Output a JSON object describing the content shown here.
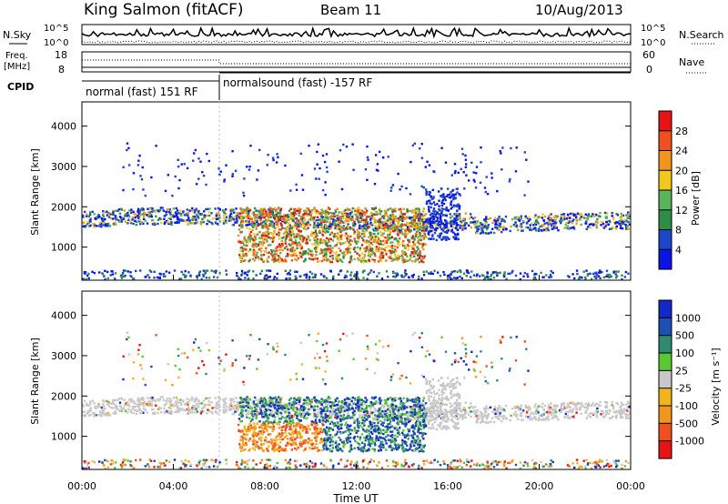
{
  "header": {
    "station": "King Salmon (fitACF)",
    "beam": "Beam 11",
    "date": "10/Aug/2013"
  },
  "top_panels": {
    "nsky_label": "N.Sky",
    "nsearch_label": "N.Search",
    "noise_ticks_left": [
      "10^5",
      "10^0"
    ],
    "noise_ticks_right": [
      "10^5",
      "10^0"
    ],
    "freq_label_1": "Freq.",
    "freq_label_2": "[MHz]",
    "freq_ticks": [
      "18",
      "8"
    ],
    "nave_label": "Nave",
    "nave_ticks": [
      "60",
      "0"
    ],
    "cpid_label": "CPID",
    "cpid_segments": [
      {
        "label": "normal (fast) 151 RF",
        "start_hour": 0,
        "end_hour": 6
      },
      {
        "label": "normalsound (fast) -157 RF",
        "start_hour": 6,
        "end_hour": 24
      }
    ]
  },
  "colors": {
    "power_scale": [
      "#0a14e6",
      "#1e46c8",
      "#2d8c46",
      "#5ab45a",
      "#f0c81e",
      "#f0961e",
      "#f0501e",
      "#e61414"
    ],
    "velocity_scale": [
      "#e61414",
      "#f0501e",
      "#f0961e",
      "#f0b41e",
      "#c8c8c8",
      "#5ac832",
      "#2d8c6e",
      "#1e50b4",
      "#1428c8"
    ],
    "scatter_gray": "#c8c8c8"
  },
  "chart_data": [
    {
      "type": "heatmap",
      "name": "Power",
      "xlabel": "",
      "ylabel": "Slant Range [km]",
      "xlim": [
        0,
        24
      ],
      "ylim": [
        180,
        4600
      ],
      "yticks": [
        1000,
        2000,
        3000,
        4000
      ],
      "colorbar_label": "Power [dB]",
      "colorbar_ticks": [
        "4",
        "8",
        "12",
        "16",
        "20",
        "24",
        "28"
      ],
      "colorbar_range": [
        0,
        32
      ],
      "features": [
        {
          "desc": "main band",
          "t": [
            0,
            24
          ],
          "range_km": [
            1550,
            1900
          ]
        },
        {
          "desc": "enhanced region",
          "t": [
            7,
            15
          ],
          "range_km": [
            700,
            2000
          ]
        },
        {
          "desc": "ground scatter wedge",
          "t": [
            15,
            16.5
          ],
          "range_km": [
            1200,
            2500
          ]
        }
      ]
    },
    {
      "type": "heatmap",
      "name": "Velocity",
      "xlabel": "Time UT",
      "ylabel": "Slant Range [km]",
      "xlim": [
        0,
        24
      ],
      "ylim": [
        180,
        4600
      ],
      "xticks": [
        "00:00",
        "04:00",
        "08:00",
        "12:00",
        "16:00",
        "20:00",
        "00:00"
      ],
      "yticks": [
        1000,
        2000,
        3000,
        4000
      ],
      "colorbar_label": "Velocity [m s⁻¹]",
      "colorbar_ticks": [
        "1000",
        "500",
        "100",
        "25",
        "-25",
        "-100",
        "-500",
        "-1000"
      ],
      "features": [
        {
          "desc": "ground scatter band",
          "t": [
            0,
            24
          ],
          "range_km": [
            1550,
            1900
          ],
          "velocity": 0
        },
        {
          "desc": "negative velocity region",
          "t": [
            7,
            10.5
          ],
          "range_km": [
            600,
            1300
          ],
          "velocity": -300
        },
        {
          "desc": "positive velocity region",
          "t": [
            10,
            15
          ],
          "range_km": [
            1000,
            1900
          ],
          "velocity": 300
        }
      ]
    }
  ]
}
